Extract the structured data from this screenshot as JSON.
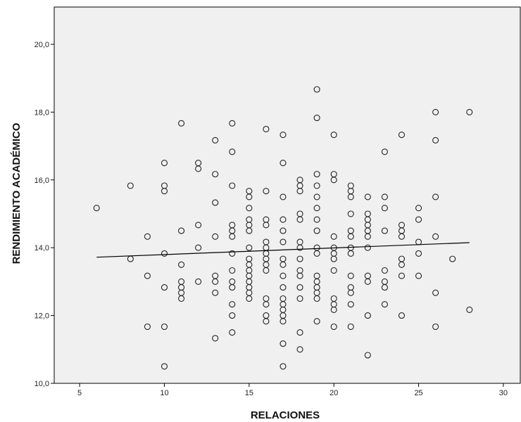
{
  "chart_data": {
    "type": "scatter",
    "xlabel": "RELACIONES",
    "ylabel": "RENDIMIENTO ACADÉMICO",
    "xlim": [
      3.5,
      31
    ],
    "ylim": [
      10.0,
      21.1
    ],
    "xticks": [
      5,
      10,
      15,
      20,
      25,
      30
    ],
    "yticks": [
      10.0,
      12.0,
      14.0,
      16.0,
      18.0,
      20.0
    ],
    "xtick_labels": [
      "5",
      "10",
      "15",
      "20",
      "25",
      "30"
    ],
    "ytick_labels": [
      "10,0",
      "12,0",
      "14,0",
      "16,0",
      "18,0",
      "20,0"
    ],
    "grid": false,
    "background_color": "#f0f0f0",
    "marker_color": "#222222",
    "fit_line": {
      "x": [
        6,
        28
      ],
      "y": [
        13.72,
        14.15
      ]
    },
    "points": [
      [
        6,
        15.17
      ],
      [
        8,
        15.83
      ],
      [
        8,
        13.67
      ],
      [
        9,
        14.33
      ],
      [
        9,
        13.17
      ],
      [
        9,
        11.67
      ],
      [
        10,
        16.5
      ],
      [
        10,
        15.83
      ],
      [
        10,
        15.67
      ],
      [
        10,
        13.83
      ],
      [
        10,
        12.83
      ],
      [
        10,
        11.67
      ],
      [
        10,
        10.5
      ],
      [
        11,
        17.67
      ],
      [
        11,
        14.5
      ],
      [
        11,
        13.5
      ],
      [
        11,
        13.0
      ],
      [
        11,
        12.83
      ],
      [
        11,
        12.67
      ],
      [
        11,
        12.5
      ],
      [
        12,
        16.5
      ],
      [
        12,
        16.33
      ],
      [
        12,
        14.67
      ],
      [
        12,
        14.0
      ],
      [
        12,
        13.0
      ],
      [
        13,
        17.17
      ],
      [
        13,
        16.17
      ],
      [
        13,
        15.33
      ],
      [
        13,
        14.33
      ],
      [
        13,
        13.17
      ],
      [
        13,
        13.0
      ],
      [
        13,
        12.67
      ],
      [
        13,
        11.33
      ],
      [
        14,
        17.67
      ],
      [
        14,
        16.83
      ],
      [
        14,
        15.83
      ],
      [
        14,
        14.67
      ],
      [
        14,
        14.5
      ],
      [
        14,
        14.33
      ],
      [
        14,
        13.83
      ],
      [
        14,
        13.33
      ],
      [
        14,
        13.0
      ],
      [
        14,
        12.83
      ],
      [
        14,
        12.33
      ],
      [
        14,
        12.0
      ],
      [
        14,
        11.5
      ],
      [
        15,
        15.67
      ],
      [
        15,
        15.5
      ],
      [
        15,
        15.17
      ],
      [
        15,
        14.83
      ],
      [
        15,
        14.67
      ],
      [
        15,
        14.5
      ],
      [
        15,
        14.0
      ],
      [
        15,
        13.67
      ],
      [
        15,
        13.5
      ],
      [
        15,
        13.33
      ],
      [
        15,
        13.17
      ],
      [
        15,
        13.0
      ],
      [
        15,
        12.83
      ],
      [
        15,
        12.67
      ],
      [
        15,
        12.5
      ],
      [
        16,
        17.5
      ],
      [
        16,
        15.67
      ],
      [
        16,
        14.83
      ],
      [
        16,
        14.67
      ],
      [
        16,
        14.17
      ],
      [
        16,
        14.0
      ],
      [
        16,
        13.83
      ],
      [
        16,
        13.67
      ],
      [
        16,
        13.5
      ],
      [
        16,
        13.33
      ],
      [
        16,
        12.5
      ],
      [
        16,
        12.33
      ],
      [
        16,
        12.0
      ],
      [
        16,
        11.83
      ],
      [
        17,
        17.33
      ],
      [
        17,
        16.5
      ],
      [
        17,
        15.5
      ],
      [
        17,
        14.83
      ],
      [
        17,
        14.5
      ],
      [
        17,
        14.17
      ],
      [
        17,
        13.67
      ],
      [
        17,
        13.5
      ],
      [
        17,
        13.17
      ],
      [
        17,
        12.83
      ],
      [
        17,
        12.5
      ],
      [
        17,
        12.33
      ],
      [
        17,
        12.17
      ],
      [
        17,
        12.0
      ],
      [
        17,
        11.83
      ],
      [
        17,
        11.17
      ],
      [
        17,
        10.5
      ],
      [
        18,
        16.0
      ],
      [
        18,
        15.83
      ],
      [
        18,
        15.67
      ],
      [
        18,
        15.0
      ],
      [
        18,
        14.83
      ],
      [
        18,
        14.17
      ],
      [
        18,
        14.0
      ],
      [
        18,
        13.67
      ],
      [
        18,
        13.33
      ],
      [
        18,
        13.17
      ],
      [
        18,
        12.83
      ],
      [
        18,
        12.5
      ],
      [
        18,
        11.5
      ],
      [
        18,
        11.0
      ],
      [
        19,
        18.67
      ],
      [
        19,
        17.83
      ],
      [
        19,
        16.17
      ],
      [
        19,
        15.83
      ],
      [
        19,
        15.5
      ],
      [
        19,
        15.17
      ],
      [
        19,
        14.83
      ],
      [
        19,
        14.5
      ],
      [
        19,
        14.0
      ],
      [
        19,
        13.83
      ],
      [
        19,
        13.17
      ],
      [
        19,
        13.0
      ],
      [
        19,
        12.83
      ],
      [
        19,
        12.67
      ],
      [
        19,
        12.5
      ],
      [
        19,
        11.83
      ],
      [
        20,
        17.33
      ],
      [
        20,
        16.17
      ],
      [
        20,
        16.0
      ],
      [
        20,
        14.33
      ],
      [
        20,
        14.0
      ],
      [
        20,
        13.83
      ],
      [
        20,
        13.67
      ],
      [
        20,
        13.33
      ],
      [
        20,
        12.5
      ],
      [
        20,
        12.33
      ],
      [
        20,
        12.17
      ],
      [
        20,
        11.67
      ],
      [
        21,
        15.83
      ],
      [
        21,
        15.67
      ],
      [
        21,
        15.5
      ],
      [
        21,
        15.0
      ],
      [
        21,
        14.5
      ],
      [
        21,
        14.33
      ],
      [
        21,
        14.0
      ],
      [
        21,
        13.83
      ],
      [
        21,
        13.17
      ],
      [
        21,
        12.83
      ],
      [
        21,
        12.67
      ],
      [
        21,
        12.33
      ],
      [
        21,
        11.67
      ],
      [
        22,
        15.5
      ],
      [
        22,
        15.0
      ],
      [
        22,
        14.83
      ],
      [
        22,
        14.67
      ],
      [
        22,
        14.5
      ],
      [
        22,
        14.33
      ],
      [
        22,
        14.0
      ],
      [
        22,
        13.17
      ],
      [
        22,
        13.0
      ],
      [
        22,
        12.0
      ],
      [
        22,
        10.83
      ],
      [
        23,
        16.83
      ],
      [
        23,
        15.5
      ],
      [
        23,
        15.17
      ],
      [
        23,
        14.5
      ],
      [
        23,
        13.33
      ],
      [
        23,
        13.0
      ],
      [
        23,
        12.83
      ],
      [
        23,
        12.33
      ],
      [
        24,
        17.33
      ],
      [
        24,
        14.67
      ],
      [
        24,
        14.5
      ],
      [
        24,
        14.33
      ],
      [
        24,
        13.67
      ],
      [
        24,
        13.5
      ],
      [
        24,
        13.17
      ],
      [
        24,
        12.0
      ],
      [
        25,
        15.17
      ],
      [
        25,
        14.83
      ],
      [
        25,
        14.17
      ],
      [
        25,
        13.83
      ],
      [
        25,
        13.17
      ],
      [
        26,
        18.0
      ],
      [
        26,
        17.17
      ],
      [
        26,
        15.5
      ],
      [
        26,
        14.33
      ],
      [
        26,
        12.67
      ],
      [
        26,
        11.67
      ],
      [
        27,
        13.67
      ],
      [
        28,
        18.0
      ],
      [
        28,
        12.17
      ]
    ]
  }
}
